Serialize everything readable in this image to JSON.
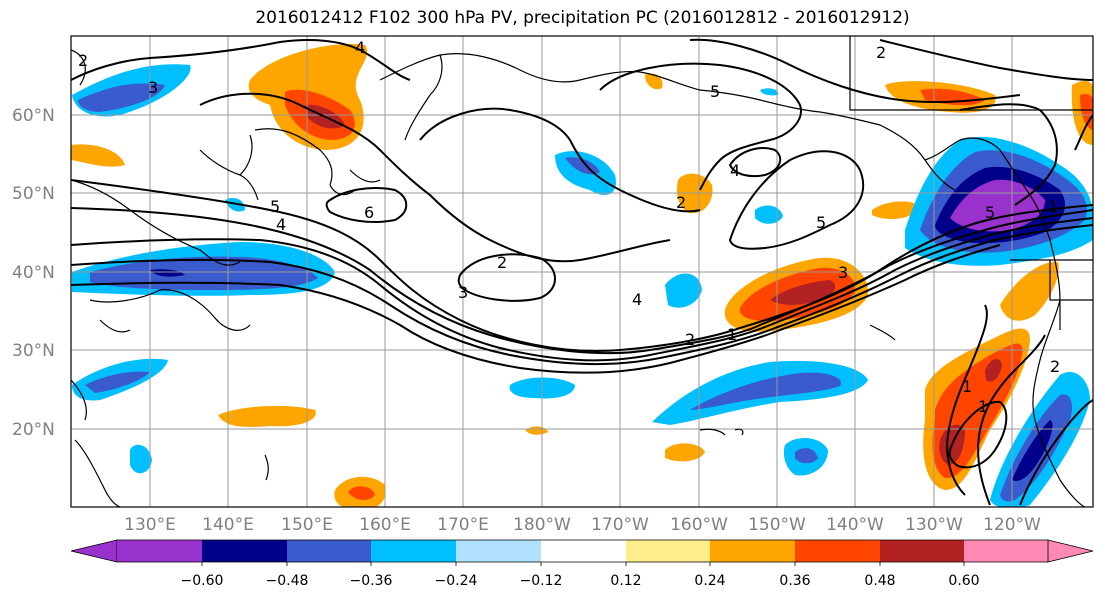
{
  "title": "2016012412 F102 300 hPa PV, precipitation PC (2016012812 - 2016012912)",
  "lat_labels": [
    "60°N",
    "50°N",
    "40°N",
    "30°N",
    "20°N"
  ],
  "lon_labels": [
    "130°E",
    "140°E",
    "150°E",
    "160°E",
    "170°E",
    "180°W",
    "170°W",
    "160°W",
    "150°W",
    "140°W",
    "130°W",
    "120°W"
  ],
  "contour_labels": [
    "2",
    "3",
    "4",
    "5",
    "6",
    "5",
    "4",
    "3",
    "2",
    "4",
    "2",
    "1",
    "2",
    "3",
    "4",
    "5",
    "5",
    "1",
    "2",
    "1",
    "1",
    "2"
  ],
  "colorbar": {
    "ticks": [
      "−0.60",
      "−0.48",
      "−0.36",
      "−0.24",
      "−0.12",
      "0.12",
      "0.24",
      "0.36",
      "0.48",
      "0.60"
    ],
    "colors": [
      "#9932cc",
      "#00008b",
      "#3a5bcd",
      "#00bfff",
      "#b0e2ff",
      "#ffffff",
      "#ffec8b",
      "#ffa500",
      "#ff4500",
      "#b22222",
      "#ff89b4"
    ]
  },
  "shading_colors": {
    "neg_extreme": "#9932cc",
    "neg_strong": "#00008b",
    "neg_mod": "#3a5bcd",
    "neg_light": "#00bfff",
    "neg_faint": "#b0e2ff",
    "pos_faint": "#ffec8b",
    "pos_light": "#ffa500",
    "pos_mod": "#ff4500",
    "pos_strong": "#b22222"
  }
}
